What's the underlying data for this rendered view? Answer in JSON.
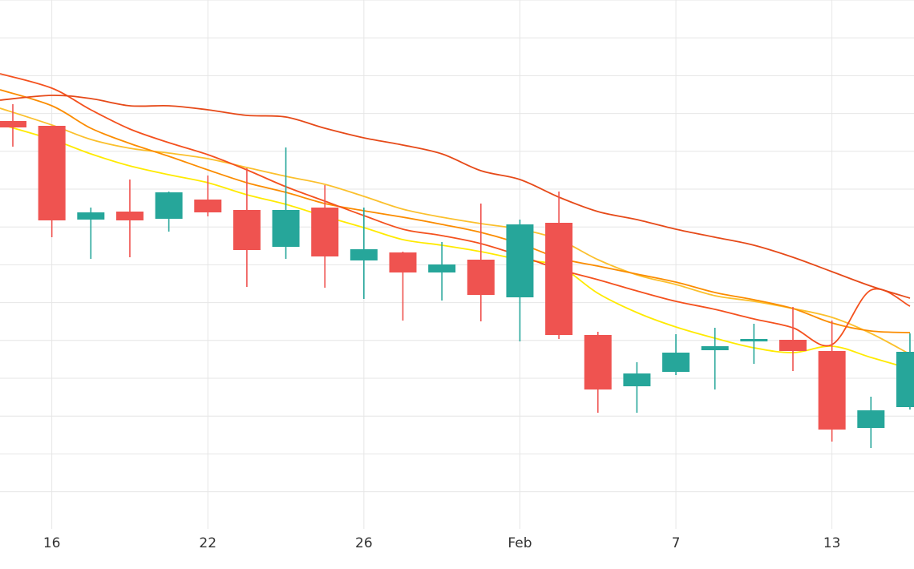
{
  "chart_data": {
    "type": "candlestick",
    "title": "",
    "xlabel": "",
    "ylabel": "",
    "grid": true,
    "legend": "none",
    "x_ticks": [
      {
        "label": "16",
        "index": 1
      },
      {
        "label": "22",
        "index": 5
      },
      {
        "label": "26",
        "index": 9
      },
      {
        "label": "Feb",
        "index": 13
      },
      {
        "label": "7",
        "index": 17
      },
      {
        "label": "13",
        "index": 21
      }
    ],
    "ylim": [
      0,
      660
    ],
    "candles": [
      {
        "open": 509,
        "high": 530,
        "low": 477,
        "close": 501
      },
      {
        "open": 503,
        "high": 503,
        "low": 364,
        "close": 385
      },
      {
        "open": 386,
        "high": 401,
        "low": 337,
        "close": 395
      },
      {
        "open": 396,
        "high": 436,
        "low": 339,
        "close": 385
      },
      {
        "open": 387,
        "high": 421,
        "low": 371,
        "close": 420
      },
      {
        "open": 411,
        "high": 441,
        "low": 390,
        "close": 395
      },
      {
        "open": 398,
        "high": 450,
        "low": 302,
        "close": 348
      },
      {
        "open": 352,
        "high": 476,
        "low": 337,
        "close": 398
      },
      {
        "open": 401,
        "high": 429,
        "low": 301,
        "close": 340
      },
      {
        "open": 335,
        "high": 401,
        "low": 287,
        "close": 349
      },
      {
        "open": 345,
        "high": 346,
        "low": 260,
        "close": 320
      },
      {
        "open": 320,
        "high": 358,
        "low": 285,
        "close": 330
      },
      {
        "open": 336,
        "high": 406,
        "low": 259,
        "close": 292
      },
      {
        "open": 289,
        "high": 386,
        "low": 234,
        "close": 380
      },
      {
        "open": 382,
        "high": 421,
        "low": 237,
        "close": 242
      },
      {
        "open": 242,
        "high": 246,
        "low": 145,
        "close": 174
      },
      {
        "open": 178,
        "high": 208,
        "low": 145,
        "close": 194
      },
      {
        "open": 196,
        "high": 243,
        "low": 192,
        "close": 220
      },
      {
        "open": 223,
        "high": 251,
        "low": 174,
        "close": 228
      },
      {
        "open": 234,
        "high": 256,
        "low": 206,
        "close": 237
      },
      {
        "open": 236,
        "high": 277,
        "low": 197,
        "close": 222
      },
      {
        "open": 222,
        "high": 260,
        "low": 109,
        "close": 124
      },
      {
        "open": 126,
        "high": 165,
        "low": 101,
        "close": 148
      },
      {
        "open": 152,
        "high": 244,
        "low": 149,
        "close": 221
      }
    ],
    "series": [
      {
        "color": "#ffea00",
        "values": [
          505,
          486,
          468,
          453,
          442,
          432,
          417,
          405,
          390,
          376,
          361,
          354,
          346,
          336,
          328,
          294,
          270,
          252,
          238,
          226,
          220,
          228,
          214,
          200
        ]
      },
      {
        "color": "#fbc02d",
        "values": [
          525,
          504,
          486,
          475,
          469,
          462,
          451,
          440,
          430,
          415,
          399,
          389,
          381,
          374,
          361,
          336,
          317,
          305,
          291,
          284,
          275,
          264,
          244,
          218
        ]
      },
      {
        "color": "#fb8c00",
        "values": [
          548,
          528,
          500,
          481,
          465,
          448,
          432,
          420,
          406,
          397,
          389,
          380,
          370,
          356,
          338,
          328,
          318,
          308,
          295,
          286,
          275,
          257,
          247,
          245
        ]
      },
      {
        "color": "#f4511e",
        "values": [
          568,
          550,
          523,
          499,
          482,
          467,
          448,
          427,
          409,
          391,
          374,
          366,
          356,
          341,
          324,
          311,
          297,
          284,
          274,
          262,
          251,
          230,
          298,
          278
        ]
      },
      {
        "color": "#e64a19",
        "values": [
          535,
          541,
          537,
          528,
          528,
          523,
          516,
          514,
          500,
          488,
          479,
          468,
          447,
          436,
          414,
          396,
          386,
          374,
          364,
          354,
          339,
          321,
          303,
          288
        ]
      }
    ]
  }
}
